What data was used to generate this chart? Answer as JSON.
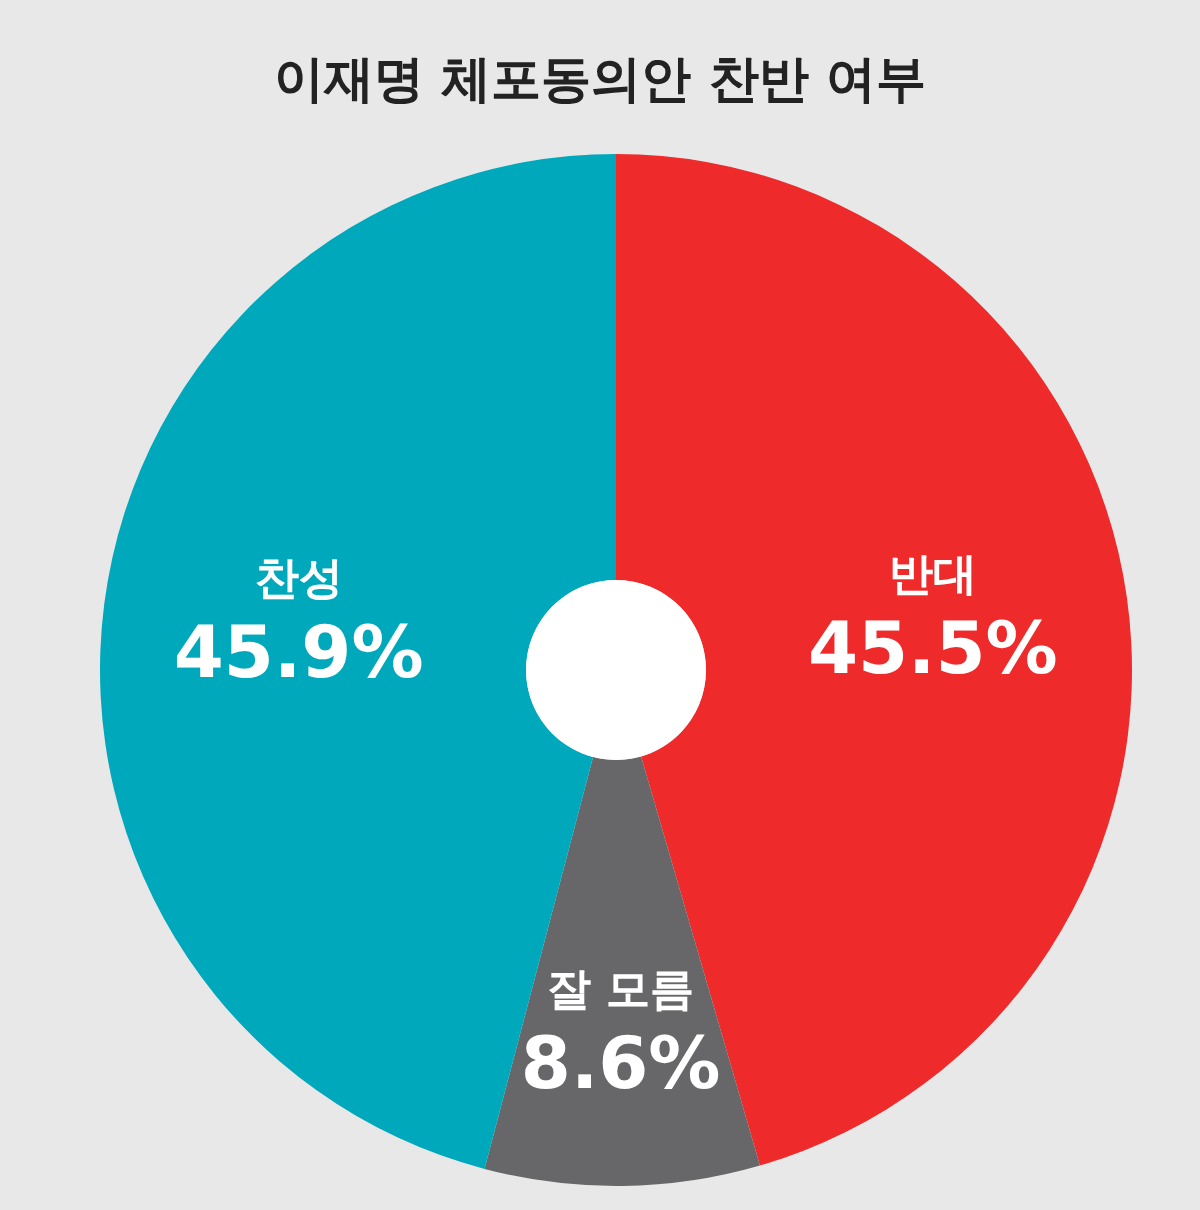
{
  "chart_data": {
    "type": "donut",
    "title": "이재명 체포동의안 찬반 여부",
    "categories": [
      "반대",
      "잘 모름",
      "찬성"
    ],
    "values": [
      45.5,
      8.6,
      45.9
    ],
    "colors": [
      "#ee2a2a",
      "#67676a",
      "#00a8bc"
    ],
    "value_labels": [
      "45.5%",
      "8.6%",
      "45.9%"
    ],
    "legend": false
  }
}
